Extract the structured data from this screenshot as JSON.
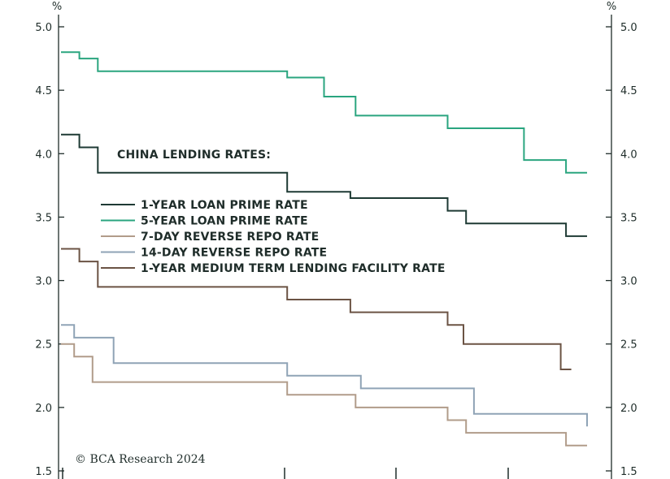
{
  "chart_data": {
    "type": "line",
    "step": true,
    "title": "",
    "left_unit": "%",
    "right_unit": "%",
    "ylim": [
      1.5,
      5.0
    ],
    "y_ticks": [
      "5.0",
      "4.5",
      "4.0",
      "3.5",
      "3.0",
      "2.5",
      "2.0",
      "1.5"
    ],
    "y_tick_values": [
      5.0,
      4.5,
      4.0,
      3.5,
      3.0,
      2.5,
      2.0,
      1.5
    ],
    "legend": {
      "title": "CHINA LENDING RATES:",
      "position": "center-left"
    },
    "series": [
      {
        "name": "1-YEAR LOAN PRIME RATE",
        "color": "#1e3a34",
        "points": [
          [
            0.0,
            4.15
          ],
          [
            0.035,
            4.15
          ],
          [
            0.035,
            4.05
          ],
          [
            0.07,
            4.05
          ],
          [
            0.07,
            3.85
          ],
          [
            0.43,
            3.85
          ],
          [
            0.43,
            3.7
          ],
          [
            0.55,
            3.7
          ],
          [
            0.55,
            3.65
          ],
          [
            0.735,
            3.65
          ],
          [
            0.735,
            3.55
          ],
          [
            0.77,
            3.55
          ],
          [
            0.77,
            3.45
          ],
          [
            0.96,
            3.45
          ],
          [
            0.96,
            3.35
          ],
          [
            1.0,
            3.35
          ]
        ]
      },
      {
        "name": "5-YEAR LOAN PRIME RATE",
        "color": "#2aa57f",
        "points": [
          [
            0.0,
            4.8
          ],
          [
            0.035,
            4.8
          ],
          [
            0.035,
            4.75
          ],
          [
            0.07,
            4.75
          ],
          [
            0.07,
            4.65
          ],
          [
            0.43,
            4.65
          ],
          [
            0.43,
            4.6
          ],
          [
            0.5,
            4.6
          ],
          [
            0.5,
            4.45
          ],
          [
            0.56,
            4.45
          ],
          [
            0.56,
            4.3
          ],
          [
            0.735,
            4.3
          ],
          [
            0.735,
            4.2
          ],
          [
            0.88,
            4.2
          ],
          [
            0.88,
            3.95
          ],
          [
            0.96,
            3.95
          ],
          [
            0.96,
            3.85
          ],
          [
            1.0,
            3.85
          ]
        ]
      },
      {
        "name": "7-DAY REVERSE REPO RATE",
        "color": "#b19c8a",
        "points": [
          [
            0.0,
            2.5
          ],
          [
            0.025,
            2.5
          ],
          [
            0.025,
            2.4
          ],
          [
            0.06,
            2.4
          ],
          [
            0.06,
            2.2
          ],
          [
            0.43,
            2.2
          ],
          [
            0.43,
            2.1
          ],
          [
            0.56,
            2.1
          ],
          [
            0.56,
            2.0
          ],
          [
            0.735,
            2.0
          ],
          [
            0.735,
            1.9
          ],
          [
            0.77,
            1.9
          ],
          [
            0.77,
            1.8
          ],
          [
            0.96,
            1.8
          ],
          [
            0.96,
            1.7
          ],
          [
            1.0,
            1.7
          ]
        ]
      },
      {
        "name": "14-DAY REVERSE REPO RATE",
        "color": "#8fa3b6",
        "points": [
          [
            0.0,
            2.65
          ],
          [
            0.025,
            2.65
          ],
          [
            0.025,
            2.55
          ],
          [
            0.1,
            2.55
          ],
          [
            0.1,
            2.35
          ],
          [
            0.43,
            2.35
          ],
          [
            0.43,
            2.25
          ],
          [
            0.57,
            2.25
          ],
          [
            0.57,
            2.15
          ],
          [
            0.785,
            2.15
          ],
          [
            0.785,
            1.95
          ],
          [
            1.0,
            1.95
          ],
          [
            1.0,
            1.85
          ]
        ]
      },
      {
        "name": "1-YEAR MEDIUM TERM LENDING FACILITY RATE",
        "color": "#6b5344",
        "points": [
          [
            0.0,
            3.25
          ],
          [
            0.035,
            3.25
          ],
          [
            0.035,
            3.15
          ],
          [
            0.07,
            3.15
          ],
          [
            0.07,
            2.95
          ],
          [
            0.43,
            2.95
          ],
          [
            0.43,
            2.85
          ],
          [
            0.55,
            2.85
          ],
          [
            0.55,
            2.75
          ],
          [
            0.735,
            2.75
          ],
          [
            0.735,
            2.65
          ],
          [
            0.765,
            2.65
          ],
          [
            0.765,
            2.5
          ],
          [
            0.95,
            2.5
          ],
          [
            0.95,
            2.3
          ],
          [
            0.97,
            2.3
          ]
        ]
      }
    ],
    "copyright": "© BCA Research 2024"
  }
}
